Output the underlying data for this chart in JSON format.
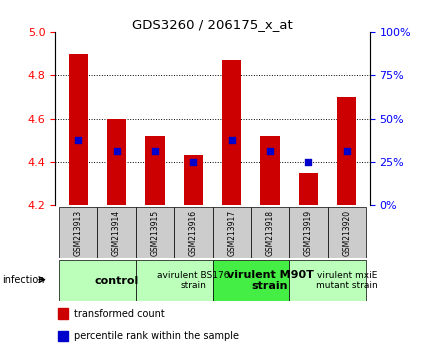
{
  "title": "GDS3260 / 206175_x_at",
  "samples": [
    "GSM213913",
    "GSM213914",
    "GSM213915",
    "GSM213916",
    "GSM213917",
    "GSM213918",
    "GSM213919",
    "GSM213920"
  ],
  "transformed_counts": [
    4.9,
    4.6,
    4.52,
    4.43,
    4.87,
    4.52,
    4.35,
    4.7
  ],
  "percentile_ranks": [
    37.5,
    31.25,
    31.25,
    25.0,
    37.5,
    31.25,
    25.0,
    31.25
  ],
  "ylim_left": [
    4.2,
    5.0
  ],
  "ylim_right": [
    0,
    100
  ],
  "yticks_left": [
    4.2,
    4.4,
    4.6,
    4.8,
    5.0
  ],
  "yticks_right": [
    0,
    25,
    50,
    75,
    100
  ],
  "ytick_labels_right": [
    "0%",
    "25%",
    "50%",
    "75%",
    "100%"
  ],
  "bar_color": "#cc0000",
  "dot_color": "#0000cc",
  "groups": [
    {
      "label": "control",
      "start": 0,
      "end": 2,
      "bg": "#bbffbb",
      "fontsize": 8,
      "bold": true
    },
    {
      "label": "avirulent BS176\nstrain",
      "start": 2,
      "end": 4,
      "bg": "#bbffbb",
      "fontsize": 6.5,
      "bold": false
    },
    {
      "label": "virulent M90T\nstrain",
      "start": 4,
      "end": 6,
      "bg": "#44ee44",
      "fontsize": 8,
      "bold": true
    },
    {
      "label": "virulent mxiE\nmutant strain",
      "start": 6,
      "end": 8,
      "bg": "#bbffbb",
      "fontsize": 6.5,
      "bold": false
    }
  ],
  "legend_items": [
    {
      "color": "#cc0000",
      "label": "transformed count"
    },
    {
      "color": "#0000cc",
      "label": "percentile rank within the sample"
    }
  ],
  "bar_width": 0.5,
  "sample_bg": "#cccccc",
  "grid_lines": [
    4.4,
    4.6,
    4.8
  ]
}
